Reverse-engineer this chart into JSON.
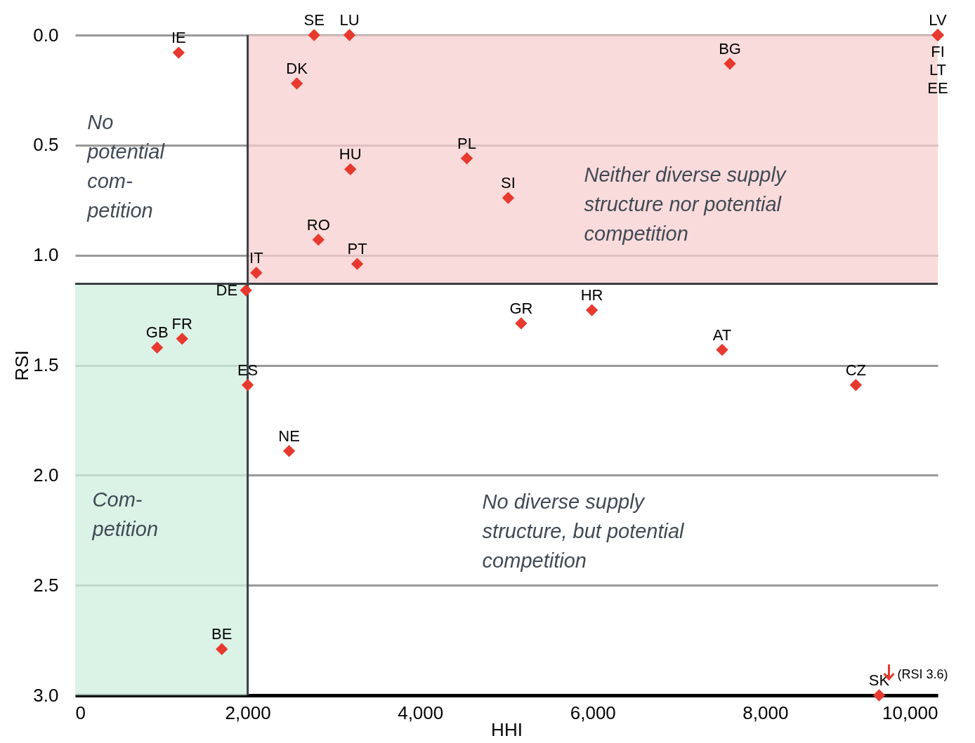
{
  "chart_data": {
    "type": "scatter",
    "xlabel": "HHI",
    "ylabel": "RSI",
    "xlim": [
      0,
      10000
    ],
    "ylim": [
      3,
      0
    ],
    "xticks": [
      0,
      {
        "value": 2000,
        "label": "2,000"
      },
      {
        "value": 4000,
        "label": "4,000"
      },
      {
        "value": 6000,
        "label": "6,000"
      },
      {
        "value": 8000,
        "label": "8,000"
      },
      {
        "value": 10000,
        "label": "10,000"
      }
    ],
    "yticks": [
      {
        "value": 0,
        "label": "0.0"
      },
      0.5,
      {
        "value": 1,
        "label": "1.0"
      },
      1.5,
      {
        "value": 2,
        "label": "2.0"
      },
      2.5,
      {
        "value": 3,
        "label": "3.0"
      }
    ],
    "grid": "y",
    "marker": "diamond",
    "series": [
      {
        "name": "IE",
        "color": "#e8392f",
        "x": [
          1200
        ],
        "values": [
          0.08
        ]
      },
      {
        "name": "SE",
        "color": "#e8392f",
        "x": [
          2770
        ],
        "values": [
          0
        ]
      },
      {
        "name": "LU",
        "color": "#e8392f",
        "x": [
          3180
        ],
        "values": [
          0
        ]
      },
      {
        "name": "LV",
        "color": "#e8392f",
        "x": [
          10000
        ],
        "values": [
          0
        ]
      },
      {
        "name": "FI",
        "color": "#e8392f",
        "x": [
          10000
        ],
        "values": [
          0
        ]
      },
      {
        "name": "LT",
        "color": "#e8392f",
        "x": [
          10000
        ],
        "values": [
          0
        ]
      },
      {
        "name": "EE",
        "color": "#e8392f",
        "x": [
          10000
        ],
        "values": [
          0
        ]
      },
      {
        "name": "DK",
        "color": "#e8392f",
        "x": [
          2570
        ],
        "values": [
          0.22
        ]
      },
      {
        "name": "BG",
        "color": "#e8392f",
        "x": [
          7590
        ],
        "values": [
          0.13
        ]
      },
      {
        "name": "HU",
        "color": "#e8392f",
        "x": [
          3190
        ],
        "values": [
          0.61
        ]
      },
      {
        "name": "PL",
        "color": "#e8392f",
        "x": [
          4540
        ],
        "values": [
          0.56
        ]
      },
      {
        "name": "SI",
        "color": "#e8392f",
        "x": [
          5020
        ],
        "values": [
          0.74
        ]
      },
      {
        "name": "RO",
        "color": "#e8392f",
        "x": [
          2820
        ],
        "values": [
          0.93
        ]
      },
      {
        "name": "PT",
        "color": "#e8392f",
        "x": [
          3270
        ],
        "values": [
          1.04
        ]
      },
      {
        "name": "IT",
        "color": "#e8392f",
        "x": [
          2100
        ],
        "values": [
          1.08
        ]
      },
      {
        "name": "DE",
        "color": "#e8392f",
        "x": [
          1980
        ],
        "values": [
          1.16
        ]
      },
      {
        "name": "GR",
        "color": "#e8392f",
        "x": [
          5170
        ],
        "values": [
          1.31
        ]
      },
      {
        "name": "HR",
        "color": "#e8392f",
        "x": [
          5990
        ],
        "values": [
          1.25
        ]
      },
      {
        "name": "AT",
        "color": "#e8392f",
        "x": [
          7500
        ],
        "values": [
          1.43
        ]
      },
      {
        "name": "CZ",
        "color": "#e8392f",
        "x": [
          9050
        ],
        "values": [
          1.59
        ]
      },
      {
        "name": "GB",
        "color": "#e8392f",
        "x": [
          950
        ],
        "values": [
          1.42
        ]
      },
      {
        "name": "FR",
        "color": "#e8392f",
        "x": [
          1240
        ],
        "values": [
          1.38
        ]
      },
      {
        "name": "ES",
        "color": "#e8392f",
        "x": [
          2000
        ],
        "values": [
          1.59
        ]
      },
      {
        "name": "NE",
        "color": "#e8392f",
        "x": [
          2480
        ],
        "values": [
          1.89
        ]
      },
      {
        "name": "BE",
        "color": "#e8392f",
        "x": [
          1700
        ],
        "values": [
          2.79
        ]
      },
      {
        "name": "SK",
        "color": "#e8392f",
        "x": [
          9320
        ],
        "values": [
          3
        ]
      }
    ],
    "ref_lines": [
      {
        "axis": "x",
        "value": 2000,
        "color": "#3a3f44"
      },
      {
        "axis": "y",
        "value": 1.13,
        "color": "#3a3f44"
      }
    ],
    "bands": [
      {
        "axis": "x",
        "from": 2000,
        "to": 10000,
        "color": "#f8cfcf"
      },
      {
        "axis": "x",
        "from": 0,
        "to": 2000,
        "color": "#cfeedf"
      }
    ],
    "annotations": [
      "No\npotential\ncom-\npetition",
      "Neither diverse supply\nstructure nor potential\ncompetition",
      "No diverse supply\nstructure, but potential\ncompetition",
      "Com-\npetition",
      {
        "text": "(RSI 3.6)",
        "x": 9320,
        "y": 3
      }
    ]
  }
}
